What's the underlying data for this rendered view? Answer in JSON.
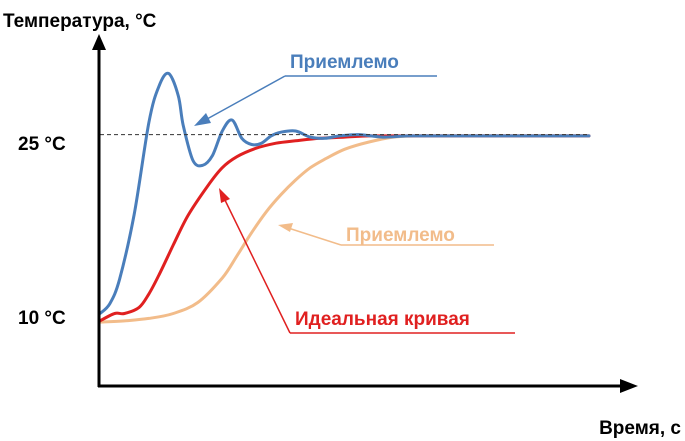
{
  "chart_data": {
    "type": "line",
    "ylabel": "Температура, °C",
    "xlabel": "Время, с",
    "ylim": [
      4.4,
      32.4
    ],
    "xlim": [
      0,
      100
    ],
    "ticks": [
      {
        "value": 25,
        "label": "25 °C"
      },
      {
        "value": 10,
        "label": "10 °C"
      }
    ],
    "reference_line": {
      "y": 25,
      "style": "dashed"
    },
    "grid": false,
    "series": [
      {
        "name": "Приемлемо",
        "color": "#4a7ebb",
        "x": [
          0,
          2,
          4,
          7,
          10,
          12,
          14,
          16,
          17,
          19,
          21,
          23,
          25,
          27,
          29,
          31,
          33,
          35,
          37,
          40,
          43,
          46,
          49,
          53,
          58,
          63,
          70,
          80,
          90,
          100
        ],
        "y": [
          10.4,
          11.2,
          13.2,
          18.5,
          26.0,
          28.9,
          30.0,
          28.2,
          25.8,
          22.9,
          22.5,
          23.3,
          25.3,
          26.2,
          24.7,
          24.2,
          24.3,
          24.9,
          25.2,
          25.3,
          24.8,
          24.7,
          24.9,
          25.0,
          24.8,
          24.9,
          24.9,
          24.9,
          24.9,
          24.9
        ]
      },
      {
        "name": "Идеальная кривая",
        "color": "#e02020",
        "x": [
          0,
          3,
          5,
          8,
          10,
          12,
          15,
          18,
          22,
          25,
          28,
          32,
          36,
          40,
          45,
          50,
          55,
          60,
          65,
          70,
          80,
          90,
          100
        ],
        "y": [
          9.8,
          10.4,
          10.4,
          10.9,
          12.0,
          13.5,
          16.0,
          18.4,
          20.8,
          22.3,
          23.2,
          23.9,
          24.3,
          24.5,
          24.7,
          24.8,
          24.9,
          24.9,
          24.9,
          24.9,
          24.9,
          24.9,
          24.9
        ]
      },
      {
        "name": "Приемлемо",
        "color": "#f2bc8a",
        "x": [
          0,
          5,
          10,
          15,
          20,
          25,
          28,
          31,
          34,
          37,
          40,
          43,
          46,
          50,
          55,
          60,
          65,
          70,
          75,
          80,
          90,
          100
        ],
        "y": [
          9.7,
          9.8,
          10.0,
          10.4,
          11.3,
          13.3,
          15.1,
          17.0,
          18.7,
          20.1,
          21.3,
          22.3,
          23.0,
          23.8,
          24.4,
          24.8,
          24.9,
          24.9,
          24.9,
          24.9,
          24.9,
          24.9
        ]
      }
    ],
    "annotations": [
      {
        "text": "Приемлемо",
        "series": 0,
        "color": "#4a7ebb"
      },
      {
        "text": "Приемлемо",
        "series": 2,
        "color": "#f2bc8a"
      },
      {
        "text": "Идеальная кривая",
        "series": 1,
        "color": "#e02020"
      }
    ]
  }
}
